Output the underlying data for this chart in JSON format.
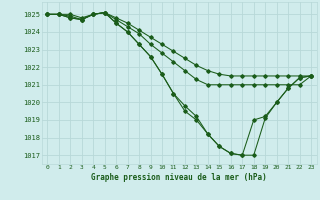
{
  "background_color": "#d0ecec",
  "grid_color": "#b8d8d8",
  "line_color": "#1a5c1a",
  "marker_color": "#1a5c1a",
  "title": "Graphe pression niveau de la mer (hPa)",
  "ylim": [
    1016.5,
    1025.7
  ],
  "yticks": [
    1017,
    1018,
    1019,
    1020,
    1021,
    1022,
    1023,
    1024,
    1025
  ],
  "xlim": [
    -0.5,
    23.5
  ],
  "xticks": [
    0,
    1,
    2,
    3,
    4,
    5,
    6,
    7,
    8,
    9,
    10,
    11,
    12,
    13,
    14,
    15,
    16,
    17,
    18,
    19,
    20,
    21,
    22,
    23
  ],
  "series": [
    [
      1025.0,
      1025.0,
      1025.0,
      1024.8,
      1025.0,
      1025.1,
      1024.8,
      1024.5,
      1024.1,
      1023.7,
      1023.3,
      1022.9,
      1022.5,
      1022.1,
      1021.8,
      1021.6,
      1021.5,
      1021.5,
      1021.5,
      1021.5,
      1021.5,
      1021.5,
      1021.5,
      1021.5
    ],
    [
      1025.0,
      1025.0,
      1024.9,
      1024.7,
      1025.0,
      1025.1,
      1024.7,
      1024.3,
      1023.9,
      1023.3,
      1022.8,
      1022.3,
      1021.8,
      1021.3,
      1021.0,
      1021.0,
      1021.0,
      1021.0,
      1021.0,
      1021.0,
      1021.0,
      1021.0,
      1021.0,
      1021.5
    ],
    [
      1025.0,
      1025.0,
      1024.8,
      1024.7,
      1025.0,
      1025.1,
      1024.5,
      1024.0,
      1023.3,
      1022.6,
      1021.6,
      1020.5,
      1019.5,
      1019.0,
      1018.2,
      1017.5,
      1017.1,
      1017.0,
      1019.0,
      1019.2,
      1020.0,
      1020.8,
      1021.4,
      1021.5
    ],
    [
      1025.0,
      1025.0,
      1024.8,
      1024.7,
      1025.0,
      1025.1,
      1024.5,
      1024.0,
      1023.3,
      1022.6,
      1021.6,
      1020.5,
      1019.8,
      1019.2,
      1018.2,
      1017.5,
      1017.1,
      1017.0,
      1017.0,
      1019.1,
      1020.0,
      1020.8,
      1021.4,
      1021.5
    ]
  ]
}
